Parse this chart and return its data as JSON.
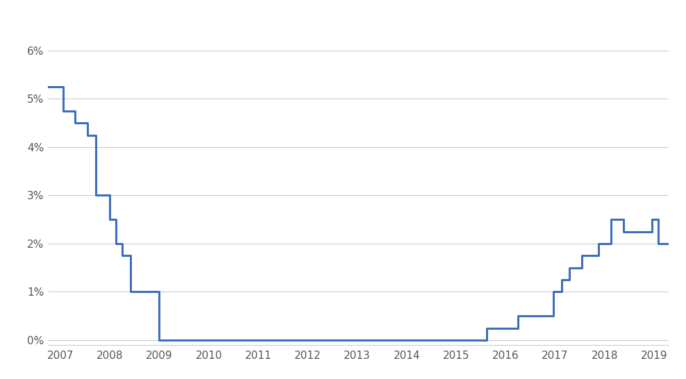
{
  "line_color": "#3d6fbb",
  "background_color": "#ffffff",
  "grid_color": "#cccccc",
  "title_fontsize": 20,
  "subtitle_fontsize": 12,
  "tick_label_color": "#555555",
  "ylim": [
    -0.001,
    0.065
  ],
  "yticks": [
    0,
    0.01,
    0.02,
    0.03,
    0.04,
    0.05,
    0.06
  ],
  "ytick_labels": [
    "0%",
    "1%",
    "2%",
    "3%",
    "4%",
    "5%",
    "6%"
  ],
  "xlim_start": 2006.75,
  "xlim_end": 2019.3,
  "xtick_years": [
    2007,
    2008,
    2009,
    2010,
    2011,
    2012,
    2013,
    2014,
    2015,
    2016,
    2017,
    2018,
    2019
  ],
  "dates": [
    2006.75,
    2007.05,
    2007.29,
    2007.55,
    2007.72,
    2007.88,
    2008.0,
    2008.13,
    2008.25,
    2008.42,
    2008.63,
    2008.88,
    2009.0,
    2015.62,
    2015.96,
    2016.25,
    2016.46,
    2016.96,
    2017.13,
    2017.29,
    2017.54,
    2017.88,
    2018.13,
    2018.38,
    2018.63,
    2018.96,
    2019.08,
    2019.72
  ],
  "rates": [
    0.0525,
    0.0475,
    0.045,
    0.0425,
    0.03,
    0.03,
    0.025,
    0.02,
    0.0175,
    0.01,
    0.01,
    0.01,
    0.0,
    0.0025,
    0.0025,
    0.005,
    0.005,
    0.01,
    0.0125,
    0.015,
    0.0175,
    0.02,
    0.025,
    0.0225,
    0.0225,
    0.025,
    0.02,
    0.02
  ]
}
